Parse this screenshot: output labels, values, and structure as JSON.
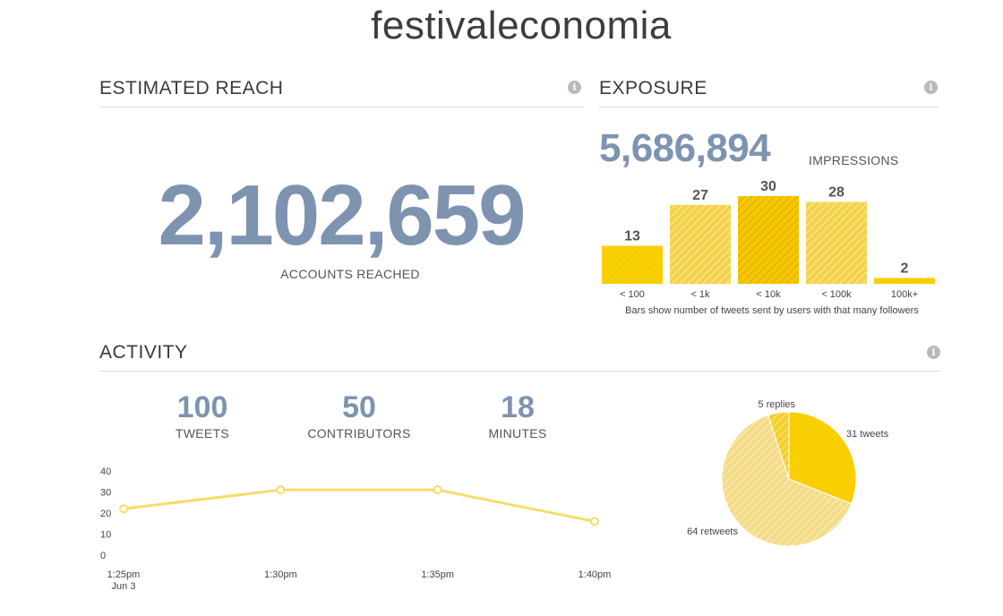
{
  "page_title": "festivaleconomia",
  "reach": {
    "title": "ESTIMATED REACH",
    "value": "2,102,659",
    "label": "ACCOUNTS REACHED",
    "info_icon": "info-icon"
  },
  "exposure": {
    "title": "EXPOSURE",
    "impressions_value": "5,686,894",
    "impressions_label": "IMPRESSIONS",
    "footnote": "Bars show number of tweets sent by users with that many followers",
    "info_icon": "info-icon"
  },
  "activity": {
    "title": "ACTIVITY",
    "info_icon": "info-icon",
    "stats": [
      {
        "value": "100",
        "label": "TWEETS"
      },
      {
        "value": "50",
        "label": "CONTRIBUTORS"
      },
      {
        "value": "18",
        "label": "MINUTES"
      }
    ]
  },
  "colors": {
    "accent_blue": "#7d93b0",
    "yellow": "#f8d200",
    "yellow_light": "#f5df7a",
    "line_yellow": "#f5dc6a"
  },
  "chart_data": [
    {
      "type": "bar",
      "categories": [
        "< 100",
        "< 1k",
        "< 10k",
        "< 100k",
        "100k+"
      ],
      "values": [
        13,
        27,
        30,
        28,
        2
      ],
      "title": "",
      "xlabel": "",
      "ylabel": ""
    },
    {
      "type": "line",
      "x": [
        "1:25pm",
        "1:30pm",
        "1:35pm",
        "1:40pm"
      ],
      "x_sublabel": "Jun 3",
      "series": [
        {
          "values": [
            22,
            31,
            31,
            16
          ]
        }
      ],
      "yticks": [
        0,
        10,
        20,
        30,
        40
      ],
      "ylim": [
        0,
        40
      ],
      "grid": false
    },
    {
      "type": "pie",
      "slices": [
        {
          "label": "31 tweets",
          "value": 31
        },
        {
          "label": "64 retweets",
          "value": 64
        },
        {
          "label": "5 replies",
          "value": 5
        }
      ]
    }
  ]
}
